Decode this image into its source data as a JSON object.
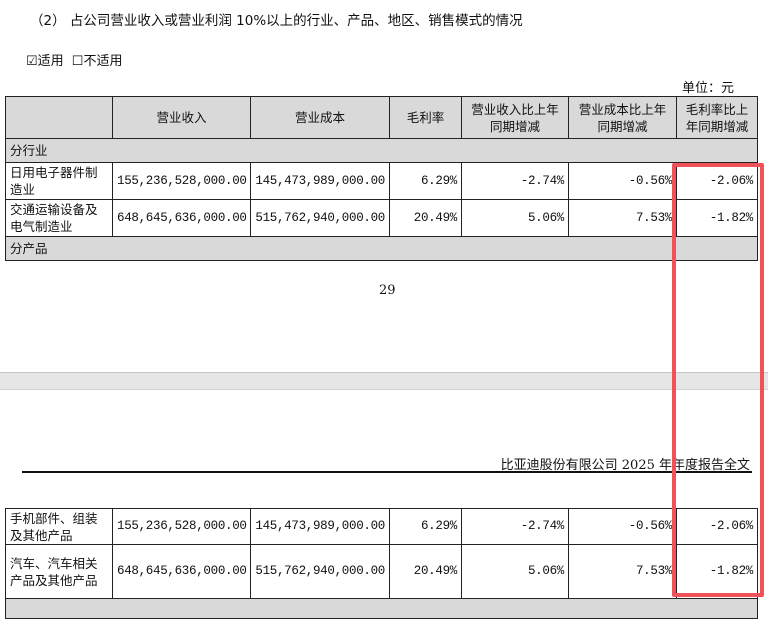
{
  "heading": "（2） 占公司营业收入或营业利润 10%以上的行业、产品、地区、销售模式的情况",
  "applicable": {
    "checked_label": "☑适用",
    "unchecked_label": "☐不适用"
  },
  "unit": "单位：元",
  "headers": [
    "",
    "营业收入",
    "营业成本",
    "毛利率",
    "营业收入比上年同期增减",
    "营业成本比上年同期增减",
    "毛利率比上年同期增减"
  ],
  "section_industry": "分行业",
  "industry_rows": [
    [
      "日用电子器件制造业",
      "155,236,528,000.00",
      "145,473,989,000.00",
      "6.29%",
      "-2.74%",
      "-0.56%",
      "-2.06%"
    ],
    [
      "交通运输设备及电气制造业",
      "648,645,636,000.00",
      "515,762,940,000.00",
      "20.49%",
      "5.06%",
      "7.53%",
      "-1.82%"
    ]
  ],
  "section_product": "分产品",
  "page_number": "29",
  "footer_title": "比亚迪股份有限公司 2025 年年度报告全文",
  "product_rows": [
    [
      "手机部件、组装及其他产品",
      "155,236,528,000.00",
      "145,473,989,000.00",
      "6.29%",
      "-2.74%",
      "-0.56%",
      "-2.06%"
    ],
    [
      "汽车、汽车相关产品及其他产品",
      "648,645,636,000.00",
      "515,762,940,000.00",
      "20.49%",
      "5.06%",
      "7.53%",
      "-1.82%"
    ]
  ],
  "highlight_color": "#f0525a"
}
